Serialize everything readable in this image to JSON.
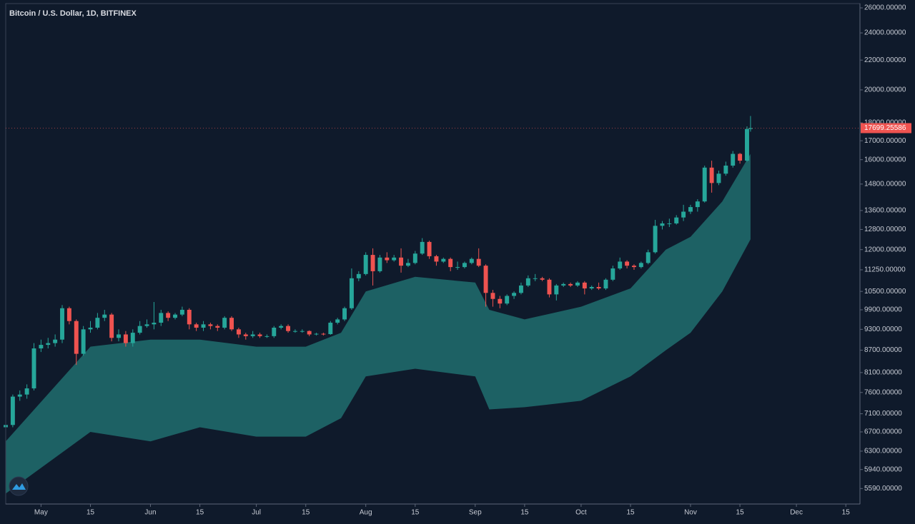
{
  "chart_data": {
    "type": "candlestick",
    "title": "Bitcoin / U.S. Dollar, 1D, BITFINEX",
    "x": [
      "04-21",
      "04-23",
      "04-25",
      "04-27",
      "04-29",
      "05-01",
      "05-03",
      "05-05",
      "05-07",
      "05-09",
      "05-11",
      "05-13",
      "05-15",
      "05-17",
      "05-19",
      "05-21",
      "05-23",
      "05-25",
      "05-27",
      "05-29",
      "05-31",
      "06-02",
      "06-04",
      "06-06",
      "06-08",
      "06-10",
      "06-12",
      "06-14",
      "06-16",
      "06-18",
      "06-20",
      "06-22",
      "06-24",
      "06-26",
      "06-28",
      "06-30",
      "07-02",
      "07-04",
      "07-06",
      "07-08",
      "07-10",
      "07-12",
      "07-14",
      "07-16",
      "07-18",
      "07-20",
      "07-22",
      "07-24",
      "07-26",
      "07-28",
      "07-30",
      "08-01",
      "08-03",
      "08-05",
      "08-07",
      "08-09",
      "08-11",
      "08-13",
      "08-15",
      "08-17",
      "08-19",
      "08-21",
      "08-23",
      "08-25",
      "08-27",
      "08-29",
      "08-31",
      "09-02",
      "09-04",
      "09-06",
      "09-08",
      "09-10",
      "09-12",
      "09-14",
      "09-16",
      "09-18",
      "09-20",
      "09-22",
      "09-24",
      "09-26",
      "09-28",
      "09-30",
      "10-02",
      "10-04",
      "10-06",
      "10-08",
      "10-10",
      "10-12",
      "10-14",
      "10-16",
      "10-18",
      "10-20",
      "10-22",
      "10-24",
      "10-26",
      "10-28",
      "10-30",
      "11-01",
      "11-03",
      "11-05",
      "11-07",
      "11-09",
      "11-11",
      "11-13",
      "11-15",
      "11-17",
      "11-18"
    ],
    "open": [
      6800,
      6850,
      7500,
      7550,
      7700,
      8750,
      8850,
      8900,
      9000,
      9950,
      9550,
      8600,
      9300,
      9350,
      9650,
      9750,
      9050,
      9150,
      8900,
      9200,
      9400,
      9450,
      9500,
      9800,
      9650,
      9750,
      9900,
      9450,
      9350,
      9450,
      9400,
      9350,
      9650,
      9300,
      9150,
      9100,
      9150,
      9100,
      9100,
      9350,
      9400,
      9250,
      9250,
      9250,
      9150,
      9170,
      9160,
      9500,
      9600,
      9950,
      10950,
      11100,
      11800,
      11200,
      11700,
      11600,
      11700,
      11400,
      11500,
      11850,
      12300,
      11750,
      11550,
      11650,
      11350,
      11350,
      11500,
      11650,
      11400,
      10450,
      10250,
      10100,
      10350,
      10450,
      10700,
      10950,
      10950,
      10900,
      10400,
      10700,
      10750,
      10700,
      10800,
      10600,
      10650,
      10600,
      10900,
      11300,
      11550,
      11400,
      11350,
      11500,
      11900,
      12950,
      13050,
      13050,
      13300,
      13550,
      13750,
      14000,
      15600,
      14850,
      15300,
      15700,
      16300,
      15950,
      17650
    ],
    "high": [
      6950,
      7550,
      7650,
      7800,
      8900,
      9000,
      9050,
      9150,
      10050,
      10000,
      9600,
      9400,
      9550,
      9800,
      9900,
      9800,
      9300,
      9250,
      9300,
      9550,
      9600,
      10150,
      9900,
      9850,
      9800,
      10000,
      9950,
      9500,
      9550,
      9500,
      9450,
      9700,
      9700,
      9350,
      9200,
      9250,
      9200,
      9150,
      9400,
      9450,
      9450,
      9300,
      9300,
      9270,
      9200,
      9200,
      9550,
      9650,
      10000,
      11300,
      11200,
      11900,
      12050,
      11800,
      11900,
      11800,
      12050,
      11650,
      11950,
      12450,
      12350,
      11800,
      11700,
      11700,
      11550,
      11550,
      11700,
      12050,
      11450,
      10550,
      10350,
      10400,
      10500,
      10800,
      11050,
      11100,
      11000,
      10950,
      10750,
      10800,
      10800,
      10850,
      10850,
      10700,
      10800,
      10950,
      11400,
      11700,
      11600,
      11450,
      11550,
      12000,
      13200,
      13150,
      13250,
      13400,
      13850,
      13850,
      14100,
      15700,
      15950,
      15450,
      15900,
      16450,
      16350,
      17800,
      18400
    ],
    "low": [
      6750,
      6800,
      7400,
      7450,
      7650,
      8650,
      8750,
      8800,
      8900,
      9450,
      8300,
      8550,
      9200,
      9300,
      9550,
      8950,
      8950,
      8800,
      8800,
      9150,
      9350,
      9300,
      9400,
      9550,
      9600,
      9700,
      9300,
      9250,
      9250,
      9300,
      9250,
      9300,
      9250,
      9050,
      9000,
      9050,
      9050,
      9050,
      9050,
      9300,
      9200,
      9200,
      9200,
      9100,
      9120,
      9120,
      9140,
      9450,
      9550,
      9900,
      10850,
      11050,
      10700,
      11150,
      11500,
      11550,
      11150,
      11350,
      11450,
      11800,
      11650,
      11400,
      11500,
      11200,
      11250,
      11300,
      11450,
      11350,
      10000,
      10000,
      9950,
      10050,
      10250,
      10400,
      10650,
      10850,
      10850,
      10300,
      10200,
      10650,
      10650,
      10650,
      10400,
      10550,
      10550,
      10550,
      10850,
      11250,
      11300,
      11250,
      11300,
      11450,
      11850,
      12800,
      12900,
      13000,
      13150,
      13450,
      13550,
      13950,
      14400,
      14750,
      15200,
      15600,
      15800,
      15900,
      17500
    ],
    "close": [
      6850,
      7500,
      7550,
      7700,
      8750,
      8850,
      8900,
      9000,
      9950,
      9550,
      8600,
      9300,
      9350,
      9650,
      9750,
      9050,
      9150,
      8900,
      9200,
      9400,
      9450,
      9500,
      9800,
      9650,
      9750,
      9900,
      9450,
      9350,
      9450,
      9400,
      9350,
      9650,
      9300,
      9150,
      9100,
      9150,
      9100,
      9100,
      9350,
      9400,
      9250,
      9250,
      9250,
      9150,
      9170,
      9160,
      9500,
      9600,
      9950,
      10950,
      11100,
      11800,
      11200,
      11700,
      11600,
      11700,
      11400,
      11500,
      11850,
      12300,
      11750,
      11550,
      11650,
      11350,
      11350,
      11500,
      11650,
      11400,
      10450,
      10250,
      10100,
      10350,
      10450,
      10700,
      10950,
      10950,
      10900,
      10400,
      10700,
      10750,
      10700,
      10800,
      10600,
      10650,
      10600,
      10900,
      11300,
      11550,
      11400,
      11350,
      11500,
      11900,
      12950,
      13050,
      13050,
      13300,
      13550,
      13750,
      14000,
      15600,
      14850,
      15300,
      15700,
      16300,
      15950,
      17650,
      17699.25586
    ],
    "up_color": "#26a69a",
    "down_color": "#ef5350",
    "cloud": {
      "x": [
        "04-21",
        "05-15",
        "06-01",
        "06-15",
        "07-01",
        "07-15",
        "07-25",
        "08-01",
        "08-15",
        "09-01",
        "09-05",
        "09-15",
        "10-01",
        "10-15",
        "10-25",
        "11-01",
        "11-10",
        "11-18"
      ],
      "upper": [
        6500,
        8800,
        9000,
        9000,
        8800,
        8800,
        9200,
        10500,
        11000,
        10800,
        9900,
        9600,
        10000,
        10600,
        12000,
        12500,
        14000,
        16300
      ],
      "lower": [
        5500,
        6700,
        6500,
        6800,
        6600,
        6600,
        7000,
        8000,
        8200,
        8000,
        7200,
        7250,
        7400,
        8000,
        8700,
        9200,
        10500,
        12400
      ],
      "color": "#2a9d94"
    },
    "last_price": 17699.25586,
    "last_price_color": "#ef5350",
    "log_scale": true,
    "xlim": [
      "04-21",
      "12-19"
    ],
    "xticks": [
      {
        "value": "05-01",
        "label": "May"
      },
      {
        "value": "05-15",
        "label": "15"
      },
      {
        "value": "06-01",
        "label": "Jun"
      },
      {
        "value": "06-15",
        "label": "15"
      },
      {
        "value": "07-01",
        "label": "Jul"
      },
      {
        "value": "07-15",
        "label": "15"
      },
      {
        "value": "08-01",
        "label": "Aug"
      },
      {
        "value": "08-15",
        "label": "15"
      },
      {
        "value": "09-01",
        "label": "Sep"
      },
      {
        "value": "09-15",
        "label": "15"
      },
      {
        "value": "10-01",
        "label": "Oct"
      },
      {
        "value": "10-15",
        "label": "15"
      },
      {
        "value": "11-01",
        "label": "Nov"
      },
      {
        "value": "11-15",
        "label": "15"
      },
      {
        "value": "12-01",
        "label": "Dec"
      },
      {
        "value": "12-15",
        "label": "15"
      }
    ],
    "ylim": [
      5320,
      26360
    ],
    "yticks": [
      {
        "value": 5590,
        "label": "5590.00000"
      },
      {
        "value": 5940,
        "label": "5940.00000"
      },
      {
        "value": 6300,
        "label": "6300.00000"
      },
      {
        "value": 6700,
        "label": "6700.00000"
      },
      {
        "value": 7100,
        "label": "7100.00000"
      },
      {
        "value": 7600,
        "label": "7600.00000"
      },
      {
        "value": 8100,
        "label": "8100.00000"
      },
      {
        "value": 8700,
        "label": "8700.00000"
      },
      {
        "value": 9300,
        "label": "9300.00000"
      },
      {
        "value": 9900,
        "label": "9900.00000"
      },
      {
        "value": 10500,
        "label": "10500.00000"
      },
      {
        "value": 11250,
        "label": "11250.00000"
      },
      {
        "value": 12000,
        "label": "12000.00000"
      },
      {
        "value": 12800,
        "label": "12800.00000"
      },
      {
        "value": 13600,
        "label": "13600.00000"
      },
      {
        "value": 14800,
        "label": "14800.00000"
      },
      {
        "value": 16000,
        "label": "16000.00000"
      },
      {
        "value": 17000,
        "label": "17000.00000"
      },
      {
        "value": 18000,
        "label": "18000.00000"
      },
      {
        "value": 20000,
        "label": "20000.00000"
      },
      {
        "value": 22000,
        "label": "22000.00000"
      },
      {
        "value": 24000,
        "label": "24000.00000"
      },
      {
        "value": 26000,
        "label": "26000.00000"
      }
    ]
  }
}
